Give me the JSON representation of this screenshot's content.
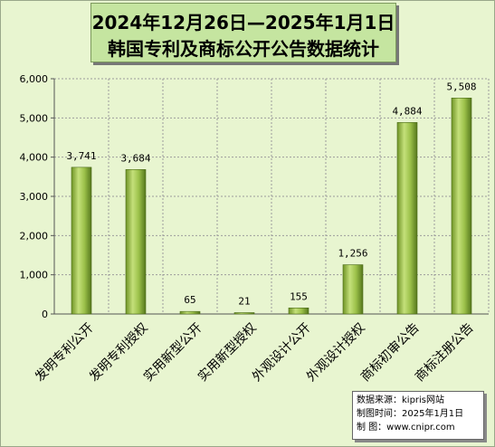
{
  "chart_data": {
    "type": "bar",
    "title_line1": "2024年12月26日—2025年1月1日",
    "title_line2": "韩国专利及商标公开公告数据统计",
    "categories": [
      "发明专利公开",
      "发明专利授权",
      "实用新型公开",
      "实用新型授权",
      "外观设计公开",
      "外观设计授权",
      "商标初审公告",
      "商标注册公告"
    ],
    "values": [
      3741,
      3684,
      65,
      21,
      155,
      1256,
      4884,
      5508
    ],
    "value_labels": [
      "3,741",
      "3,684",
      "65",
      "21",
      "155",
      "1,256",
      "4,884",
      "5,508"
    ],
    "ylim": [
      0,
      6000
    ],
    "yticks": [
      0,
      1000,
      2000,
      3000,
      4000,
      5000,
      6000
    ],
    "ytick_labels": [
      "0",
      "1,000",
      "2,000",
      "3,000",
      "4,000",
      "5,000",
      "6,000"
    ],
    "grid": true,
    "colors": {
      "bar_light": "#c4e07a",
      "bar_mid": "#8db33b",
      "bar_dark": "#55771c",
      "background": "#e8f5d0",
      "title_bg": "#c5e5a0"
    }
  },
  "source": {
    "line1": "数据来源：kipris网站",
    "line2": "制图时间：2025年1月1日",
    "line3": "制     图：www.cnipr.com"
  }
}
